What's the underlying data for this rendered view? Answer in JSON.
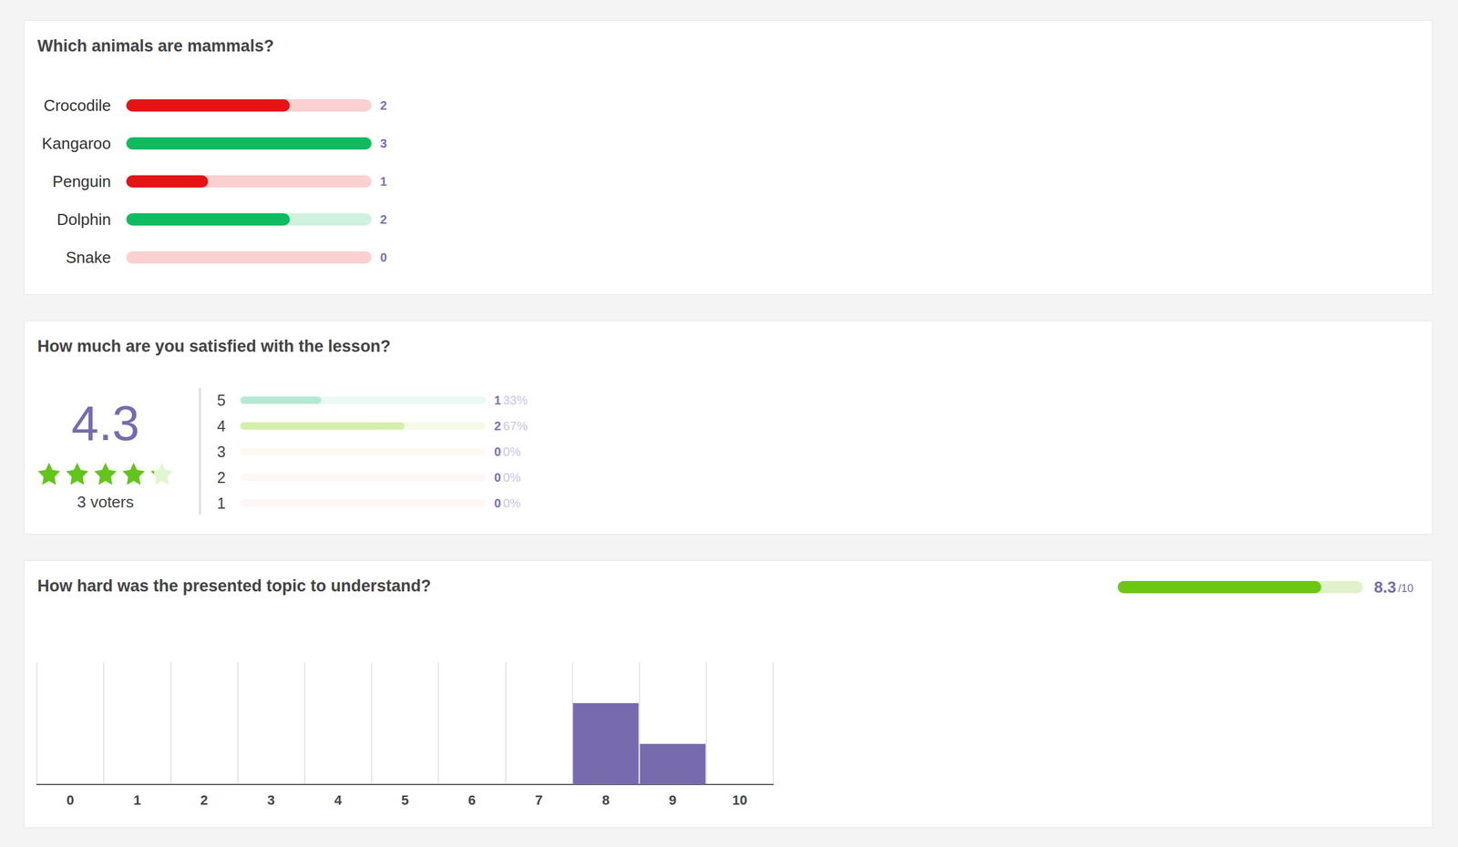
{
  "chart_data": [
    {
      "type": "bar",
      "title": "Which animals are mammals?",
      "orientation": "horizontal",
      "categories": [
        "Crocodile",
        "Kangaroo",
        "Penguin",
        "Dolphin",
        "Snake"
      ],
      "values": [
        2,
        3,
        1,
        2,
        0
      ],
      "colors": [
        "#e41414",
        "#10bb5f",
        "#e41414",
        "#10bb5f",
        "#e41414"
      ],
      "xlim": [
        0,
        3
      ],
      "data_labels": true,
      "tick_labels": "y",
      "grid": false
    },
    {
      "type": "rating",
      "title": "How much are you satisfied with the lesson?",
      "orientation": "horizontal",
      "average": 4.3,
      "star_range": [
        0,
        5
      ],
      "voters_label": "3 voters",
      "categories": [
        "5",
        "4",
        "3",
        "2",
        "1"
      ],
      "values": [
        1,
        2,
        0,
        0,
        0
      ],
      "percentages": [
        33,
        67,
        0,
        0,
        0
      ],
      "percentage_labels": [
        "33%",
        "67%",
        "0%",
        "0%",
        "0%"
      ],
      "colors": [
        "#b3e9d2",
        "#d5efa8",
        "#fde8cc",
        "#fce1d4",
        "#fadcdc"
      ],
      "xlim": [
        0,
        100
      ],
      "data_labels": true,
      "tick_labels": "y",
      "grid": false
    },
    {
      "type": "bar",
      "title": "How hard was the presented topic to understand?",
      "categories": [
        "0",
        "1",
        "2",
        "3",
        "4",
        "5",
        "6",
        "7",
        "8",
        "9",
        "10"
      ],
      "values": [
        0,
        0,
        0,
        0,
        0,
        0,
        0,
        0,
        2,
        1,
        0
      ],
      "color": "#776bae",
      "ylim": [
        0,
        3
      ],
      "grid": true,
      "tick_labels": "x",
      "mean": 8.3,
      "mean_range": [
        0,
        10
      ],
      "mean_label": "/10",
      "mean_color": "#6cc614"
    }
  ]
}
